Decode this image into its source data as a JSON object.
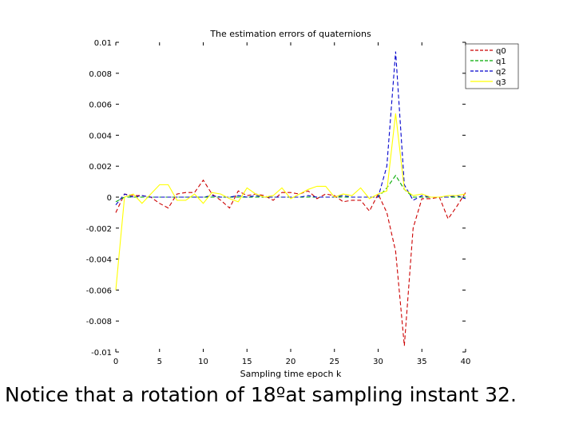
{
  "caption": "Notice that a rotation of 18ºat sampling instant 32.",
  "chart_data": {
    "type": "line",
    "title": "The estimation errors of quaternions",
    "xlabel": "Sampling time epoch k",
    "ylabel": "",
    "xlim": [
      0,
      40
    ],
    "ylim": [
      -0.01,
      0.01
    ],
    "xticks": [
      0,
      5,
      10,
      15,
      20,
      25,
      30,
      35,
      40
    ],
    "yticks": [
      -0.01,
      -0.008,
      -0.006,
      -0.004,
      -0.002,
      0,
      0.002,
      0.004,
      0.006,
      0.008,
      0.01
    ],
    "ytick_labels": [
      "-0.01",
      "-0.008",
      "-0.006",
      "-0.004",
      "-0.002",
      "0",
      "0.002",
      "0.004",
      "0.006",
      "0.008",
      "0.01"
    ],
    "xtick_labels": [
      "0",
      "5",
      "10",
      "15",
      "20",
      "25",
      "30",
      "35",
      "40"
    ],
    "grid": false,
    "legend_position": "top-right",
    "x": [
      0,
      1,
      2,
      3,
      4,
      5,
      6,
      7,
      8,
      9,
      10,
      11,
      12,
      13,
      14,
      15,
      16,
      17,
      18,
      19,
      20,
      21,
      22,
      23,
      24,
      25,
      26,
      27,
      28,
      29,
      30,
      31,
      32,
      33,
      34,
      35,
      36,
      37,
      38,
      39,
      40
    ],
    "series": [
      {
        "name": "q0",
        "color": "#cc0000",
        "dash": true,
        "values": [
          -0.001,
          0.0002,
          0.0001,
          0.0001,
          0,
          -0.0004,
          -0.0007,
          0.0002,
          0.0003,
          0.0003,
          0.0011,
          0.0002,
          -0.0002,
          -0.0007,
          0.0004,
          0.0001,
          0.0002,
          0.0001,
          -0.0002,
          0.0003,
          0.0003,
          0.0002,
          0.0004,
          -0.0001,
          0.0002,
          0.0001,
          -0.0003,
          -0.0002,
          -0.0002,
          -0.0009,
          0.0002,
          -0.001,
          -0.0035,
          -0.0096,
          -0.002,
          -0.0001,
          -0.0001,
          0,
          -0.0014,
          -0.0006,
          0.0003
        ]
      },
      {
        "name": "q1",
        "color": "#00aa00",
        "dash": true,
        "values": [
          -0.0003,
          0,
          0,
          0,
          0,
          0,
          0,
          0,
          0,
          0,
          0,
          0,
          0,
          0,
          0,
          0,
          0,
          0,
          0,
          0,
          0,
          0,
          0,
          0,
          0,
          0,
          0,
          0,
          0,
          0,
          0,
          0.0006,
          0.0014,
          0.0005,
          0,
          0,
          0,
          0,
          0,
          0,
          0
        ]
      },
      {
        "name": "q2",
        "color": "#0000cc",
        "dash": true,
        "values": [
          -0.0005,
          0.0002,
          0,
          0.0001,
          0,
          0,
          0,
          0,
          0,
          0,
          0,
          0.0001,
          0,
          0,
          0.0001,
          0,
          0.0001,
          0,
          0,
          0,
          0,
          0,
          0.0001,
          0,
          0,
          0,
          0.0001,
          0,
          0,
          0,
          0,
          0.002,
          0.0094,
          0.0008,
          -0.0002,
          0.0001,
          0,
          0,
          0,
          0.0001,
          -0.0001
        ]
      },
      {
        "name": "q3",
        "color": "#ffff00",
        "dash": false,
        "values": [
          -0.006,
          0,
          0.0002,
          -0.0004,
          0.0002,
          0.0008,
          0.0008,
          -0.0002,
          -0.0002,
          0.0002,
          -0.0004,
          0.0003,
          0.0002,
          -0.0001,
          -0.0003,
          0.0006,
          0.0002,
          0,
          0.0001,
          0.0006,
          -0.0001,
          0.0002,
          0.0005,
          0.0007,
          0.0007,
          0,
          0.0002,
          0.0001,
          0.0006,
          -0.0001,
          0.0002,
          0.0004,
          0.0054,
          0.0005,
          0.0001,
          0.0002,
          0,
          0,
          0.0001,
          0.0001,
          0.0002
        ]
      }
    ]
  }
}
